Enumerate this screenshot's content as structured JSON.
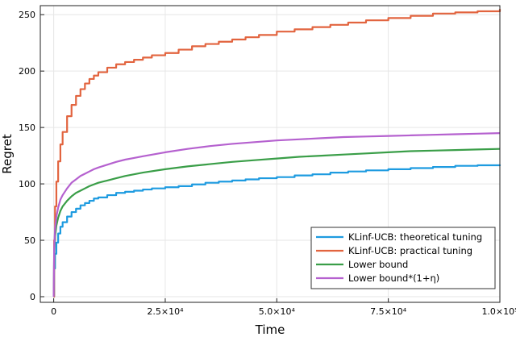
{
  "chart_data": {
    "type": "line",
    "xlabel": "Time",
    "ylabel": "Regret",
    "xlim": [
      -3000,
      100000
    ],
    "ylim": [
      -5,
      258
    ],
    "x_ticks": [
      {
        "value": 0,
        "label": "0"
      },
      {
        "value": 25000,
        "label": "2.5×10⁴"
      },
      {
        "value": 50000,
        "label": "5.0×10⁴"
      },
      {
        "value": 75000,
        "label": "7.5×10⁴"
      },
      {
        "value": 100000,
        "label": "1.0×10⁵"
      }
    ],
    "y_ticks": [
      {
        "value": 0,
        "label": "0"
      },
      {
        "value": 50,
        "label": "50"
      },
      {
        "value": 100,
        "label": "100"
      },
      {
        "value": 150,
        "label": "150"
      },
      {
        "value": 200,
        "label": "200"
      },
      {
        "value": 250,
        "label": "250"
      }
    ],
    "grid": true,
    "legend_position": "bottom-right",
    "series": [
      {
        "name": "KLinf-UCB: theoretical tuning",
        "color": "#1e9be0",
        "step": true,
        "x": [
          0,
          100,
          300,
          600,
          1000,
          1500,
          2000,
          3000,
          4000,
          5000,
          6000,
          7000,
          8000,
          9000,
          10000,
          12000,
          14000,
          16000,
          18000,
          20000,
          22000,
          25000,
          28000,
          31000,
          34000,
          37000,
          40000,
          43000,
          46000,
          50000,
          54000,
          58000,
          62000,
          66000,
          70000,
          75000,
          80000,
          85000,
          90000,
          95000,
          100000
        ],
        "y": [
          0,
          25,
          38,
          48,
          56,
          62,
          66,
          71,
          75,
          78,
          81,
          83,
          85,
          87,
          88,
          90,
          92,
          93,
          94,
          95,
          96,
          97,
          98,
          99.5,
          101,
          102,
          103,
          104,
          105,
          106,
          107.5,
          108.5,
          110,
          111,
          112,
          113,
          114,
          115,
          116,
          116.5,
          117
        ]
      },
      {
        "name": "KLinf-UCB: practical tuning",
        "color": "#e2643f",
        "step": true,
        "x": [
          0,
          100,
          300,
          600,
          1000,
          1500,
          2000,
          3000,
          4000,
          5000,
          6000,
          7000,
          8000,
          9000,
          10000,
          12000,
          14000,
          16000,
          18000,
          20000,
          22000,
          25000,
          28000,
          31000,
          34000,
          37000,
          40000,
          43000,
          46000,
          50000,
          54000,
          58000,
          62000,
          66000,
          70000,
          75000,
          80000,
          85000,
          90000,
          95000,
          100000
        ],
        "y": [
          0,
          50,
          80,
          102,
          120,
          135,
          146,
          160,
          170,
          178,
          184,
          189,
          193,
          196,
          199,
          203,
          206,
          208,
          210,
          212,
          214,
          216,
          219,
          222,
          224,
          226,
          228,
          230,
          232,
          235,
          237,
          239,
          241,
          243,
          245,
          247,
          249,
          251,
          252,
          253,
          255
        ]
      },
      {
        "name": "Lower bound",
        "color": "#3a9e48",
        "step": false,
        "x": [
          0,
          100,
          300,
          600,
          1000,
          1500,
          2000,
          3000,
          4000,
          5000,
          6000,
          7000,
          8000,
          9000,
          10000,
          12000,
          14000,
          16000,
          18000,
          20000,
          25000,
          30000,
          35000,
          40000,
          45000,
          50000,
          55000,
          60000,
          65000,
          70000,
          75000,
          80000,
          85000,
          90000,
          95000,
          100000
        ],
        "y": [
          0,
          38,
          53,
          63,
          70,
          76,
          80,
          85,
          89,
          92,
          94,
          96,
          98,
          99.5,
          101,
          103,
          105,
          107,
          108.5,
          110,
          113,
          115.5,
          117.5,
          119.5,
          121,
          122.5,
          124,
          125,
          126,
          127,
          128,
          129,
          129.5,
          130,
          130.5,
          131
        ]
      },
      {
        "name": "Lower bound*(1+η)",
        "color": "#b561cf",
        "step": false,
        "x": [
          0,
          100,
          300,
          600,
          1000,
          1500,
          2000,
          3000,
          4000,
          5000,
          6000,
          7000,
          8000,
          9000,
          10000,
          12000,
          14000,
          16000,
          18000,
          20000,
          25000,
          30000,
          35000,
          40000,
          45000,
          50000,
          55000,
          60000,
          65000,
          70000,
          75000,
          80000,
          85000,
          90000,
          95000,
          100000
        ],
        "y": [
          0,
          42,
          60,
          71,
          79,
          86,
          90,
          96,
          101,
          104,
          107,
          109,
          111,
          113,
          114.5,
          117,
          119.5,
          121.5,
          123,
          124.5,
          128,
          131,
          133.5,
          135.5,
          137,
          138.5,
          139.5,
          140.5,
          141.5,
          142,
          142.5,
          143,
          143.5,
          144,
          144.5,
          145
        ]
      }
    ]
  }
}
